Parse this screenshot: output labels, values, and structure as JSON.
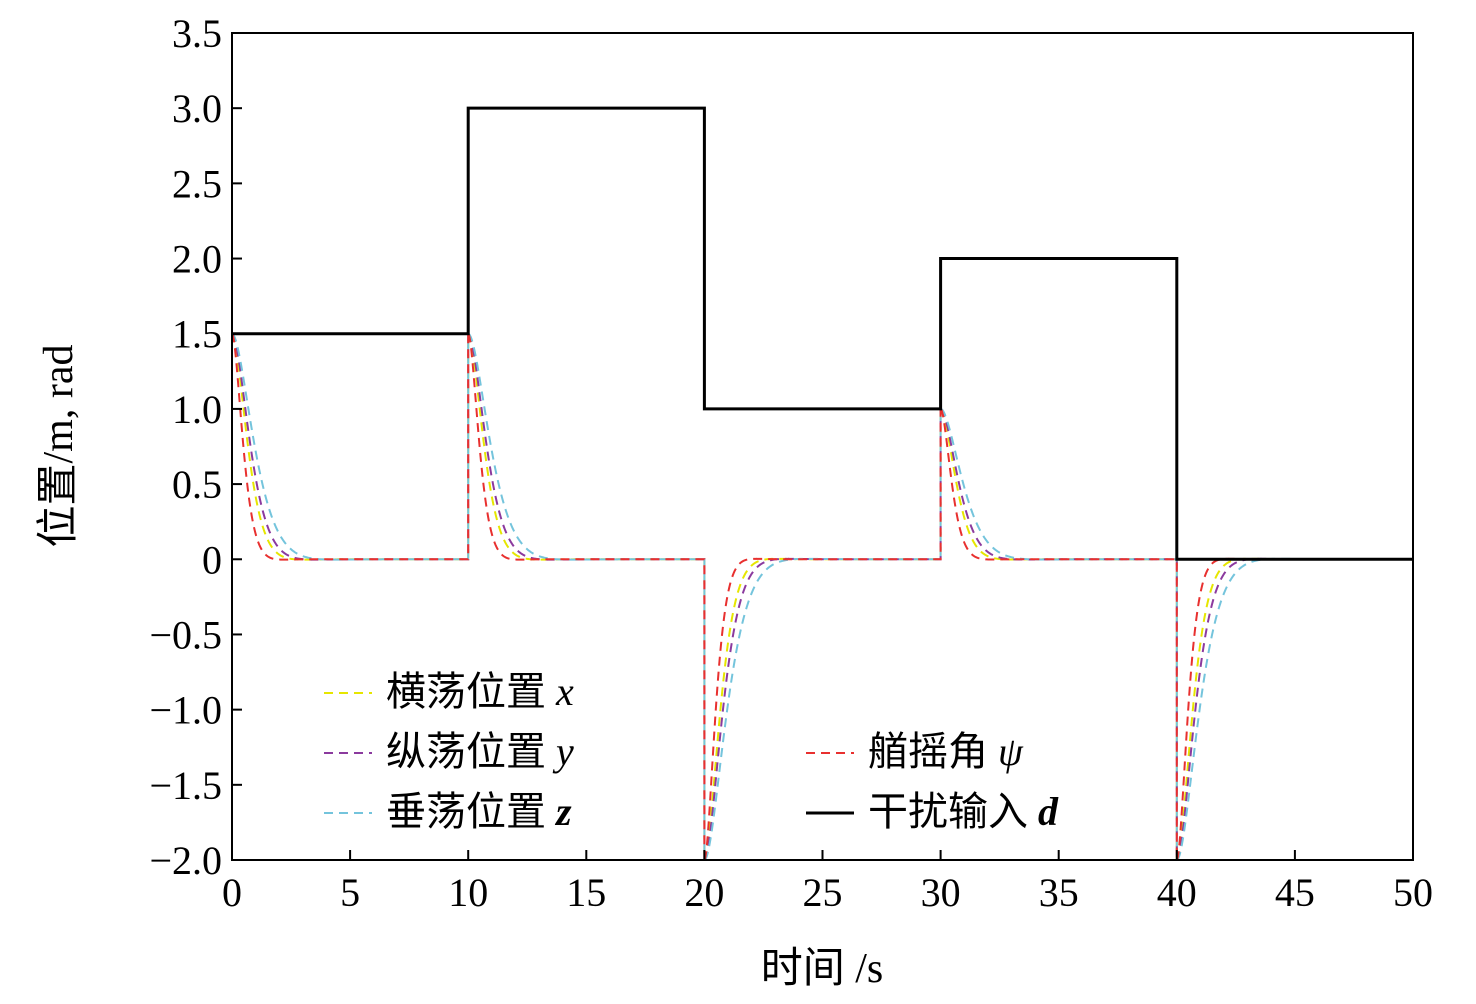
{
  "chart_data": {
    "type": "line",
    "xlabel": "时间 /s",
    "ylabel": "位置/m, rad",
    "xlim": [
      0,
      50
    ],
    "ylim": [
      -2.0,
      3.5
    ],
    "x_ticks": [
      "0",
      "5",
      "10",
      "15",
      "20",
      "25",
      "30",
      "35",
      "40",
      "45",
      "50"
    ],
    "x_tick_values": [
      0,
      5,
      10,
      15,
      20,
      25,
      30,
      35,
      40,
      45,
      50
    ],
    "y_ticks": [
      "3.5",
      "3.0",
      "2.5",
      "2.0",
      "1.5",
      "1.0",
      "0.5",
      "0",
      "−0.5",
      "−1.0",
      "−1.5",
      "−2.0"
    ],
    "y_tick_values": [
      3.5,
      3.0,
      2.5,
      2.0,
      1.5,
      1.0,
      0.5,
      0,
      -0.5,
      -1.0,
      -1.5,
      -2.0
    ],
    "grid": false,
    "disturbance_steps": {
      "times": [
        0,
        10,
        20,
        30,
        40,
        50
      ],
      "levels": [
        1.5,
        3.0,
        1.0,
        2.0,
        0.0
      ]
    },
    "response_events": [
      {
        "t": 0,
        "peak": 1.5
      },
      {
        "t": 10,
        "peak": 1.5
      },
      {
        "t": 20,
        "peak": -2.0
      },
      {
        "t": 30,
        "peak": 1.0
      },
      {
        "t": 40,
        "peak": -2.0
      }
    ],
    "series": [
      {
        "name": "横荡位置",
        "symbol": "x",
        "symbol_style": "italic",
        "color": "#e6e600",
        "dash": "dashed",
        "settle_time": 1.9,
        "legend": "left"
      },
      {
        "name": "纵荡位置",
        "symbol": "y",
        "symbol_style": "italic",
        "color": "#8b3a9e",
        "dash": "dashed",
        "settle_time": 2.2,
        "legend": "left"
      },
      {
        "name": "垂荡位置",
        "symbol": "z",
        "symbol_style": "bold-italic",
        "color": "#74c4dc",
        "dash": "dashed",
        "settle_time": 2.7,
        "legend": "left"
      },
      {
        "name": "艏摇角",
        "symbol": "ψ",
        "symbol_style": "italic",
        "color": "#e8302f",
        "dash": "dashed",
        "settle_time": 1.35,
        "legend": "right"
      },
      {
        "name": "干扰输入",
        "symbol": "d",
        "symbol_style": "bold-italic",
        "color": "#000000",
        "dash": "solid",
        "legend": "right"
      }
    ]
  }
}
